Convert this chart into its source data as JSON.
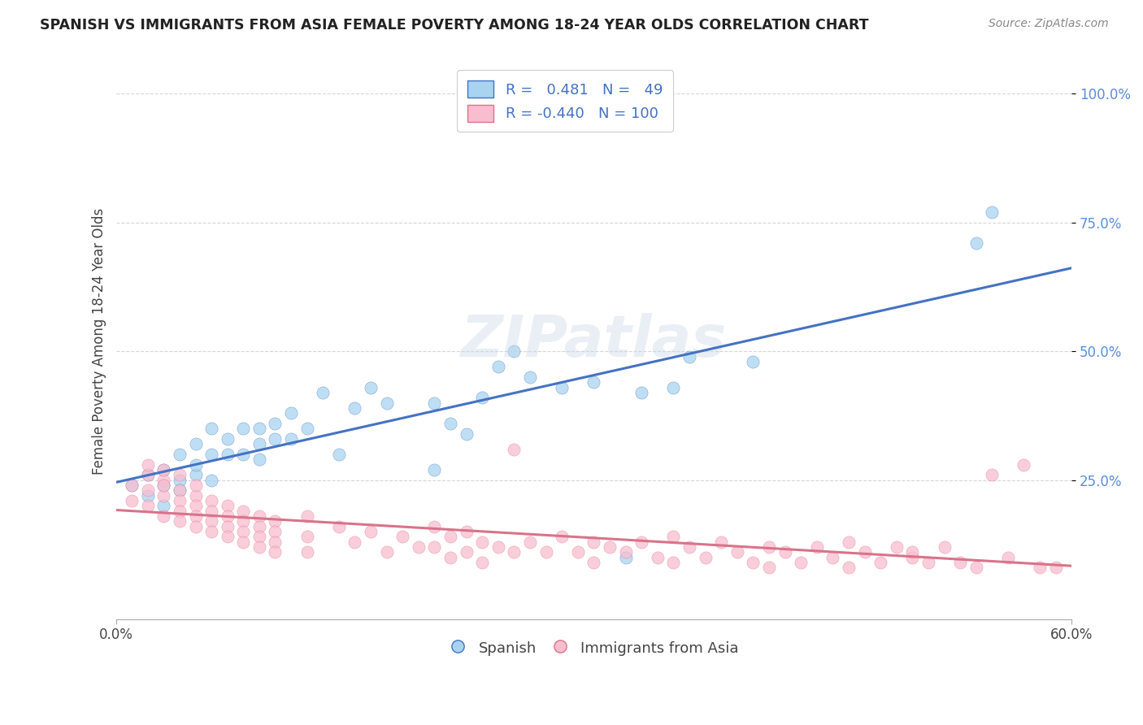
{
  "title": "SPANISH VS IMMIGRANTS FROM ASIA FEMALE POVERTY AMONG 18-24 YEAR OLDS CORRELATION CHART",
  "source": "Source: ZipAtlas.com",
  "ylabel": "Female Poverty Among 18-24 Year Olds",
  "xlim": [
    0.0,
    0.6
  ],
  "ylim": [
    0.0,
    1.05
  ],
  "yticks": [
    0.25,
    0.5,
    0.75,
    1.0
  ],
  "ytick_labels": [
    "25.0%",
    "50.0%",
    "75.0%",
    "100.0%"
  ],
  "r_spanish": 0.481,
  "n_spanish": 49,
  "r_asia": -0.44,
  "n_asia": 100,
  "color_spanish": "#a8d4f0",
  "color_asia": "#f9bdd0",
  "line_color_spanish": "#4472c4",
  "line_color_asia": "#d9738a",
  "watermark": "ZIPatlas",
  "spanish_scatter": [
    [
      0.01,
      0.24
    ],
    [
      0.02,
      0.26
    ],
    [
      0.02,
      0.22
    ],
    [
      0.03,
      0.27
    ],
    [
      0.03,
      0.24
    ],
    [
      0.03,
      0.2
    ],
    [
      0.04,
      0.25
    ],
    [
      0.04,
      0.23
    ],
    [
      0.04,
      0.3
    ],
    [
      0.05,
      0.26
    ],
    [
      0.05,
      0.32
    ],
    [
      0.05,
      0.28
    ],
    [
      0.06,
      0.25
    ],
    [
      0.06,
      0.3
    ],
    [
      0.06,
      0.35
    ],
    [
      0.07,
      0.3
    ],
    [
      0.07,
      0.33
    ],
    [
      0.08,
      0.3
    ],
    [
      0.08,
      0.35
    ],
    [
      0.09,
      0.32
    ],
    [
      0.09,
      0.35
    ],
    [
      0.09,
      0.29
    ],
    [
      0.1,
      0.33
    ],
    [
      0.1,
      0.36
    ],
    [
      0.11,
      0.38
    ],
    [
      0.11,
      0.33
    ],
    [
      0.12,
      0.35
    ],
    [
      0.13,
      0.42
    ],
    [
      0.14,
      0.3
    ],
    [
      0.15,
      0.39
    ],
    [
      0.16,
      0.43
    ],
    [
      0.17,
      0.4
    ],
    [
      0.2,
      0.4
    ],
    [
      0.2,
      0.27
    ],
    [
      0.21,
      0.36
    ],
    [
      0.22,
      0.34
    ],
    [
      0.23,
      0.41
    ],
    [
      0.24,
      0.47
    ],
    [
      0.25,
      0.5
    ],
    [
      0.26,
      0.45
    ],
    [
      0.28,
      0.43
    ],
    [
      0.3,
      0.44
    ],
    [
      0.32,
      0.1
    ],
    [
      0.33,
      0.42
    ],
    [
      0.35,
      0.43
    ],
    [
      0.36,
      0.49
    ],
    [
      0.4,
      0.48
    ],
    [
      0.54,
      0.71
    ],
    [
      0.55,
      0.77
    ]
  ],
  "asia_scatter": [
    [
      0.01,
      0.24
    ],
    [
      0.01,
      0.21
    ],
    [
      0.02,
      0.26
    ],
    [
      0.02,
      0.23
    ],
    [
      0.02,
      0.28
    ],
    [
      0.02,
      0.2
    ],
    [
      0.03,
      0.25
    ],
    [
      0.03,
      0.27
    ],
    [
      0.03,
      0.22
    ],
    [
      0.03,
      0.24
    ],
    [
      0.03,
      0.18
    ],
    [
      0.04,
      0.23
    ],
    [
      0.04,
      0.21
    ],
    [
      0.04,
      0.26
    ],
    [
      0.04,
      0.19
    ],
    [
      0.04,
      0.17
    ],
    [
      0.05,
      0.22
    ],
    [
      0.05,
      0.24
    ],
    [
      0.05,
      0.2
    ],
    [
      0.05,
      0.18
    ],
    [
      0.05,
      0.16
    ],
    [
      0.06,
      0.21
    ],
    [
      0.06,
      0.19
    ],
    [
      0.06,
      0.17
    ],
    [
      0.06,
      0.15
    ],
    [
      0.07,
      0.2
    ],
    [
      0.07,
      0.18
    ],
    [
      0.07,
      0.16
    ],
    [
      0.07,
      0.14
    ],
    [
      0.08,
      0.19
    ],
    [
      0.08,
      0.17
    ],
    [
      0.08,
      0.15
    ],
    [
      0.08,
      0.13
    ],
    [
      0.09,
      0.18
    ],
    [
      0.09,
      0.16
    ],
    [
      0.09,
      0.14
    ],
    [
      0.09,
      0.12
    ],
    [
      0.1,
      0.17
    ],
    [
      0.1,
      0.15
    ],
    [
      0.1,
      0.13
    ],
    [
      0.1,
      0.11
    ],
    [
      0.12,
      0.18
    ],
    [
      0.12,
      0.14
    ],
    [
      0.12,
      0.11
    ],
    [
      0.14,
      0.16
    ],
    [
      0.15,
      0.13
    ],
    [
      0.16,
      0.15
    ],
    [
      0.17,
      0.11
    ],
    [
      0.18,
      0.14
    ],
    [
      0.19,
      0.12
    ],
    [
      0.2,
      0.16
    ],
    [
      0.2,
      0.12
    ],
    [
      0.21,
      0.14
    ],
    [
      0.21,
      0.1
    ],
    [
      0.22,
      0.15
    ],
    [
      0.22,
      0.11
    ],
    [
      0.23,
      0.13
    ],
    [
      0.23,
      0.09
    ],
    [
      0.24,
      0.12
    ],
    [
      0.25,
      0.31
    ],
    [
      0.25,
      0.11
    ],
    [
      0.26,
      0.13
    ],
    [
      0.27,
      0.11
    ],
    [
      0.28,
      0.14
    ],
    [
      0.29,
      0.11
    ],
    [
      0.3,
      0.13
    ],
    [
      0.3,
      0.09
    ],
    [
      0.31,
      0.12
    ],
    [
      0.32,
      0.11
    ],
    [
      0.33,
      0.13
    ],
    [
      0.34,
      0.1
    ],
    [
      0.35,
      0.14
    ],
    [
      0.35,
      0.09
    ],
    [
      0.36,
      0.12
    ],
    [
      0.37,
      0.1
    ],
    [
      0.38,
      0.13
    ],
    [
      0.39,
      0.11
    ],
    [
      0.4,
      0.09
    ],
    [
      0.41,
      0.12
    ],
    [
      0.41,
      0.08
    ],
    [
      0.42,
      0.11
    ],
    [
      0.43,
      0.09
    ],
    [
      0.44,
      0.12
    ],
    [
      0.45,
      0.1
    ],
    [
      0.46,
      0.13
    ],
    [
      0.46,
      0.08
    ],
    [
      0.47,
      0.11
    ],
    [
      0.48,
      0.09
    ],
    [
      0.49,
      0.12
    ],
    [
      0.5,
      0.1
    ],
    [
      0.5,
      0.11
    ],
    [
      0.51,
      0.09
    ],
    [
      0.52,
      0.12
    ],
    [
      0.53,
      0.09
    ],
    [
      0.54,
      0.08
    ],
    [
      0.55,
      0.26
    ],
    [
      0.56,
      0.1
    ],
    [
      0.57,
      0.28
    ],
    [
      0.58,
      0.08
    ],
    [
      0.59,
      0.08
    ]
  ]
}
